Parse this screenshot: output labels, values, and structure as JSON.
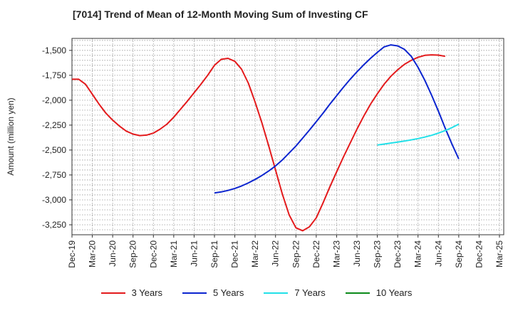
{
  "title": "[7014]  Trend of Mean of 12-Month Moving Sum of Investing CF",
  "chart_data": {
    "type": "line",
    "title": "[7014]  Trend of Mean of 12-Month Moving Sum of Investing CF",
    "ylabel": "Amount (million yen)",
    "xlabel": "",
    "ylim": [
      -3350,
      -1380
    ],
    "y_ticks": [
      -1500,
      -1750,
      -2000,
      -2250,
      -2500,
      -2750,
      -3000,
      -3250
    ],
    "y_tick_labels": [
      "-1,500",
      "-1,750",
      "-2,000",
      "-2,250",
      "-2,500",
      "-2,750",
      "-3,000",
      "-3,250"
    ],
    "x_ticks": [
      "Dec-19",
      "Mar-20",
      "Jun-20",
      "Sep-20",
      "Dec-20",
      "Mar-21",
      "Jun-21",
      "Sep-21",
      "Dec-21",
      "Mar-22",
      "Jun-22",
      "Sep-22",
      "Dec-22",
      "Mar-23",
      "Jun-23",
      "Sep-23",
      "Dec-23",
      "Mar-24",
      "Jun-24",
      "Sep-24",
      "Dec-24",
      "Mar-25"
    ],
    "grid": true,
    "legend_position": "bottom",
    "series": [
      {
        "name": "3 Years",
        "color": "#e31a1c",
        "start_month": 0,
        "values": [
          -1790,
          -1790,
          -1840,
          -1940,
          -2040,
          -2130,
          -2200,
          -2260,
          -2310,
          -2340,
          -2355,
          -2350,
          -2330,
          -2290,
          -2240,
          -2170,
          -2090,
          -2010,
          -1925,
          -1840,
          -1750,
          -1650,
          -1590,
          -1580,
          -1610,
          -1690,
          -1830,
          -2020,
          -2230,
          -2460,
          -2700,
          -2940,
          -3150,
          -3280,
          -3310,
          -3270,
          -3180,
          -3030,
          -2870,
          -2720,
          -2570,
          -2430,
          -2290,
          -2160,
          -2040,
          -1935,
          -1840,
          -1760,
          -1695,
          -1640,
          -1600,
          -1570,
          -1550,
          -1545,
          -1548,
          -1560
        ]
      },
      {
        "name": "5 Years",
        "color": "#0b24cf",
        "start_month": 21,
        "values": [
          -2930,
          -2920,
          -2905,
          -2885,
          -2860,
          -2830,
          -2795,
          -2755,
          -2710,
          -2660,
          -2600,
          -2530,
          -2460,
          -2380,
          -2300,
          -2215,
          -2130,
          -2040,
          -1955,
          -1870,
          -1790,
          -1715,
          -1645,
          -1580,
          -1520,
          -1465,
          -1445,
          -1455,
          -1490,
          -1560,
          -1670,
          -1800,
          -1950,
          -2110,
          -2280,
          -2440,
          -2590
        ]
      },
      {
        "name": "7 Years",
        "color": "#22e0e8",
        "start_month": 45,
        "values": [
          -2450,
          -2440,
          -2430,
          -2420,
          -2410,
          -2398,
          -2385,
          -2370,
          -2352,
          -2330,
          -2305,
          -2275,
          -2240
        ]
      },
      {
        "name": "10 Years",
        "color": "#0b8a1a",
        "start_month": 0,
        "values": []
      }
    ]
  }
}
